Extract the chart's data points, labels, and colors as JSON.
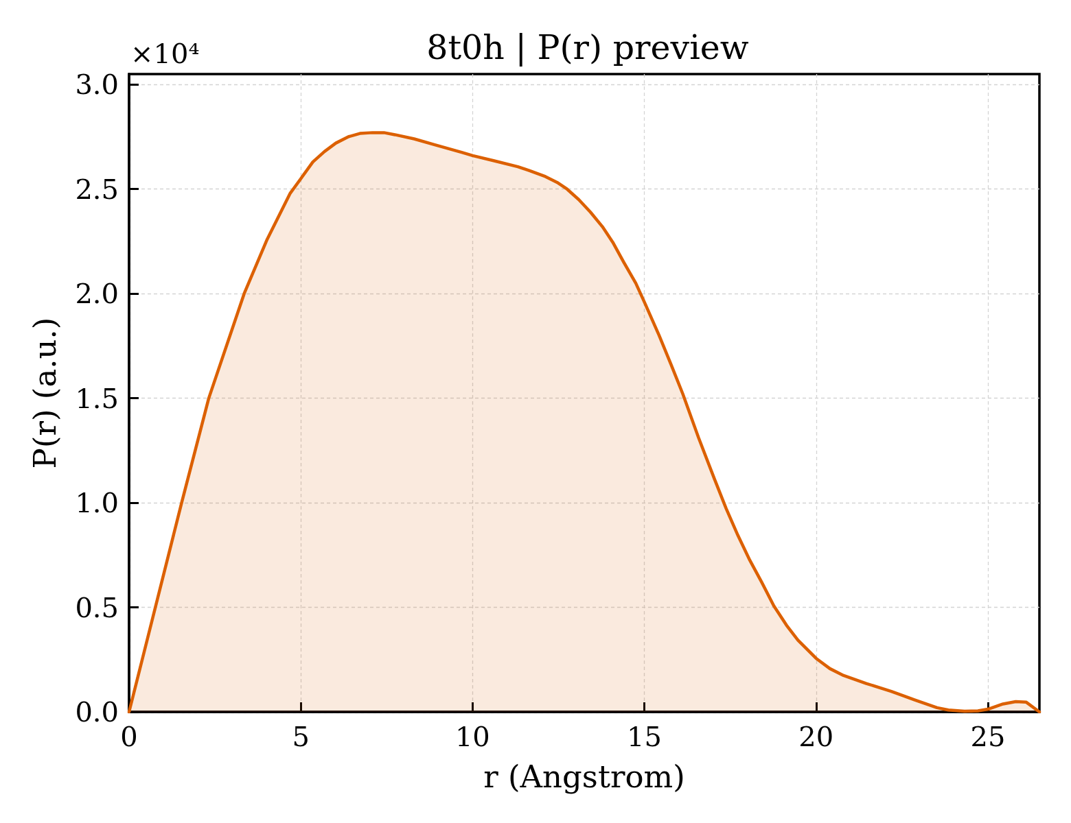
{
  "chart_data": {
    "type": "area",
    "title": "8t0h | P(r) preview",
    "xlabel": "r (Angstrom)",
    "ylabel": "P(r) (a.u.)",
    "annotations": [
      "×10⁴"
    ],
    "x": [
      0,
      1.53,
      2.32,
      3.35,
      4.02,
      4.69,
      5.0,
      5.35,
      5.69,
      6.02,
      6.38,
      6.72,
      7.09,
      7.42,
      7.74,
      8.3,
      8.9,
      9.7,
      10.0,
      10.63,
      11.32,
      11.66,
      12.12,
      12.46,
      12.75,
      13.09,
      13.43,
      13.78,
      14.08,
      14.4,
      14.75,
      15.0,
      15.43,
      15.78,
      16.12,
      16.58,
      17.04,
      17.38,
      17.72,
      18.07,
      18.41,
      18.77,
      19.14,
      19.47,
      20.0,
      20.4,
      20.8,
      21.46,
      22.19,
      22.86,
      23.52,
      23.85,
      24.32,
      24.71,
      25.0,
      25.44,
      25.81,
      26.11,
      26.5
    ],
    "values": [
      0,
      1.0,
      1.5,
      2.0,
      2.26,
      2.48,
      2.55,
      2.63,
      2.68,
      2.72,
      2.75,
      2.766,
      2.77,
      2.77,
      2.76,
      2.74,
      2.712,
      2.675,
      2.66,
      2.635,
      2.607,
      2.588,
      2.56,
      2.532,
      2.5,
      2.45,
      2.39,
      2.32,
      2.246,
      2.15,
      2.05,
      1.96,
      1.8,
      1.66,
      1.52,
      1.31,
      1.114,
      0.973,
      0.845,
      0.725,
      0.622,
      0.507,
      0.414,
      0.343,
      0.256,
      0.207,
      0.174,
      0.136,
      0.098,
      0.058,
      0.02,
      0.009,
      0.003,
      0.005,
      0.013,
      0.038,
      0.049,
      0.047,
      0
    ],
    "color": "#dc6000",
    "xlim": [
      0,
      26.5
    ],
    "ylim": [
      0,
      3.05
    ],
    "xticks": [
      0,
      5,
      10,
      15,
      20,
      25
    ],
    "yticks": [
      {
        "value": 0,
        "label": "0.0"
      },
      0.5,
      {
        "value": 1,
        "label": "1.0"
      },
      1.5,
      {
        "value": 2,
        "label": "2.0"
      },
      2.5,
      {
        "value": 3,
        "label": "3.0"
      }
    ],
    "grid": true,
    "marker": "none",
    "line_style": "solid"
  }
}
